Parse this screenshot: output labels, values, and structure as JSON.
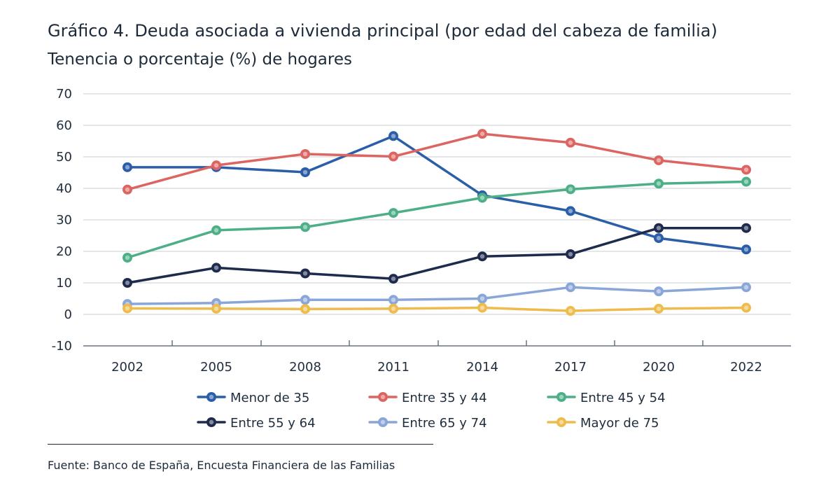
{
  "title": "Gráfico 4. Deuda asociada a vivienda principal (por edad del cabeza de familia)",
  "subtitle": "Tenencia o porcentaje (%) de hogares",
  "source": "Fuente: Banco de España, Encuesta Financiera de las Familias",
  "chart_data": {
    "type": "line",
    "title": "Gráfico 4. Deuda asociada a vivienda principal (por edad del cabeza de familia)",
    "subtitle": "Tenencia o porcentaje (%) de hogares",
    "xlabel": "",
    "ylabel": "",
    "categories": [
      "2002",
      "2005",
      "2008",
      "2011",
      "2014",
      "2017",
      "2020",
      "2022"
    ],
    "ylim": [
      -10,
      70
    ],
    "yticks": [
      -10,
      0,
      10,
      20,
      30,
      40,
      50,
      60,
      70
    ],
    "grid": true,
    "legend_position": "bottom",
    "series": [
      {
        "name": "Menor de 35",
        "color": "#2b5ea8",
        "values": [
          46.7,
          46.7,
          45.1,
          56.6,
          37.8,
          32.8,
          24.2,
          20.6
        ]
      },
      {
        "name": "Entre 35 y 44",
        "color": "#dc6461",
        "values": [
          39.6,
          47.3,
          50.9,
          50.1,
          57.3,
          54.5,
          48.9,
          45.9
        ]
      },
      {
        "name": "Entre 45 y 54",
        "color": "#4caf88",
        "values": [
          18.0,
          26.7,
          27.7,
          32.2,
          37.0,
          39.7,
          41.5,
          42.1
        ]
      },
      {
        "name": "Entre 55 y 64",
        "color": "#1e2b4d",
        "values": [
          10.0,
          14.8,
          13.0,
          11.3,
          18.4,
          19.1,
          27.4,
          27.4
        ]
      },
      {
        "name": "Entre 65 y 74",
        "color": "#8aa6d8",
        "values": [
          3.3,
          3.6,
          4.6,
          4.6,
          5.0,
          8.6,
          7.3,
          8.6
        ]
      },
      {
        "name": "Mayor de 75",
        "color": "#eebb4d",
        "values": [
          1.9,
          1.8,
          1.7,
          1.8,
          2.1,
          1.1,
          1.8,
          2.1
        ]
      }
    ]
  }
}
